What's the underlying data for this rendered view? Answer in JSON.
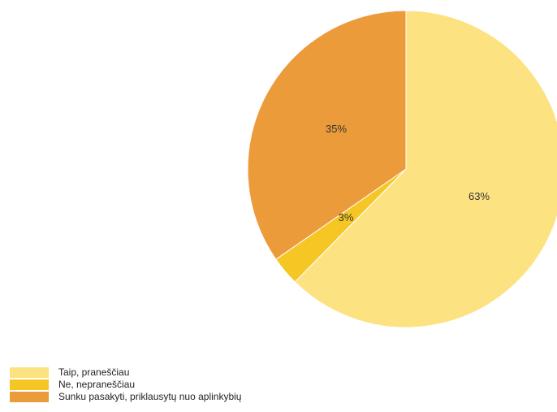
{
  "chart_data": {
    "type": "pie",
    "slices": [
      {
        "label": "Taip, praneščiau",
        "value": 63,
        "value_label": "63%",
        "color": "#FDE281"
      },
      {
        "label": "Ne, nepraneščiau",
        "value": 3,
        "value_label": "3%",
        "color": "#F5C624"
      },
      {
        "label": "Sunku pasakyti, priklausytų nuo aplinkybių",
        "value": 35,
        "value_label": "35%",
        "color": "#EC9B3B"
      }
    ],
    "start_angle_deg": 0,
    "direction": "clockwise",
    "legend_position": "bottom-left"
  }
}
